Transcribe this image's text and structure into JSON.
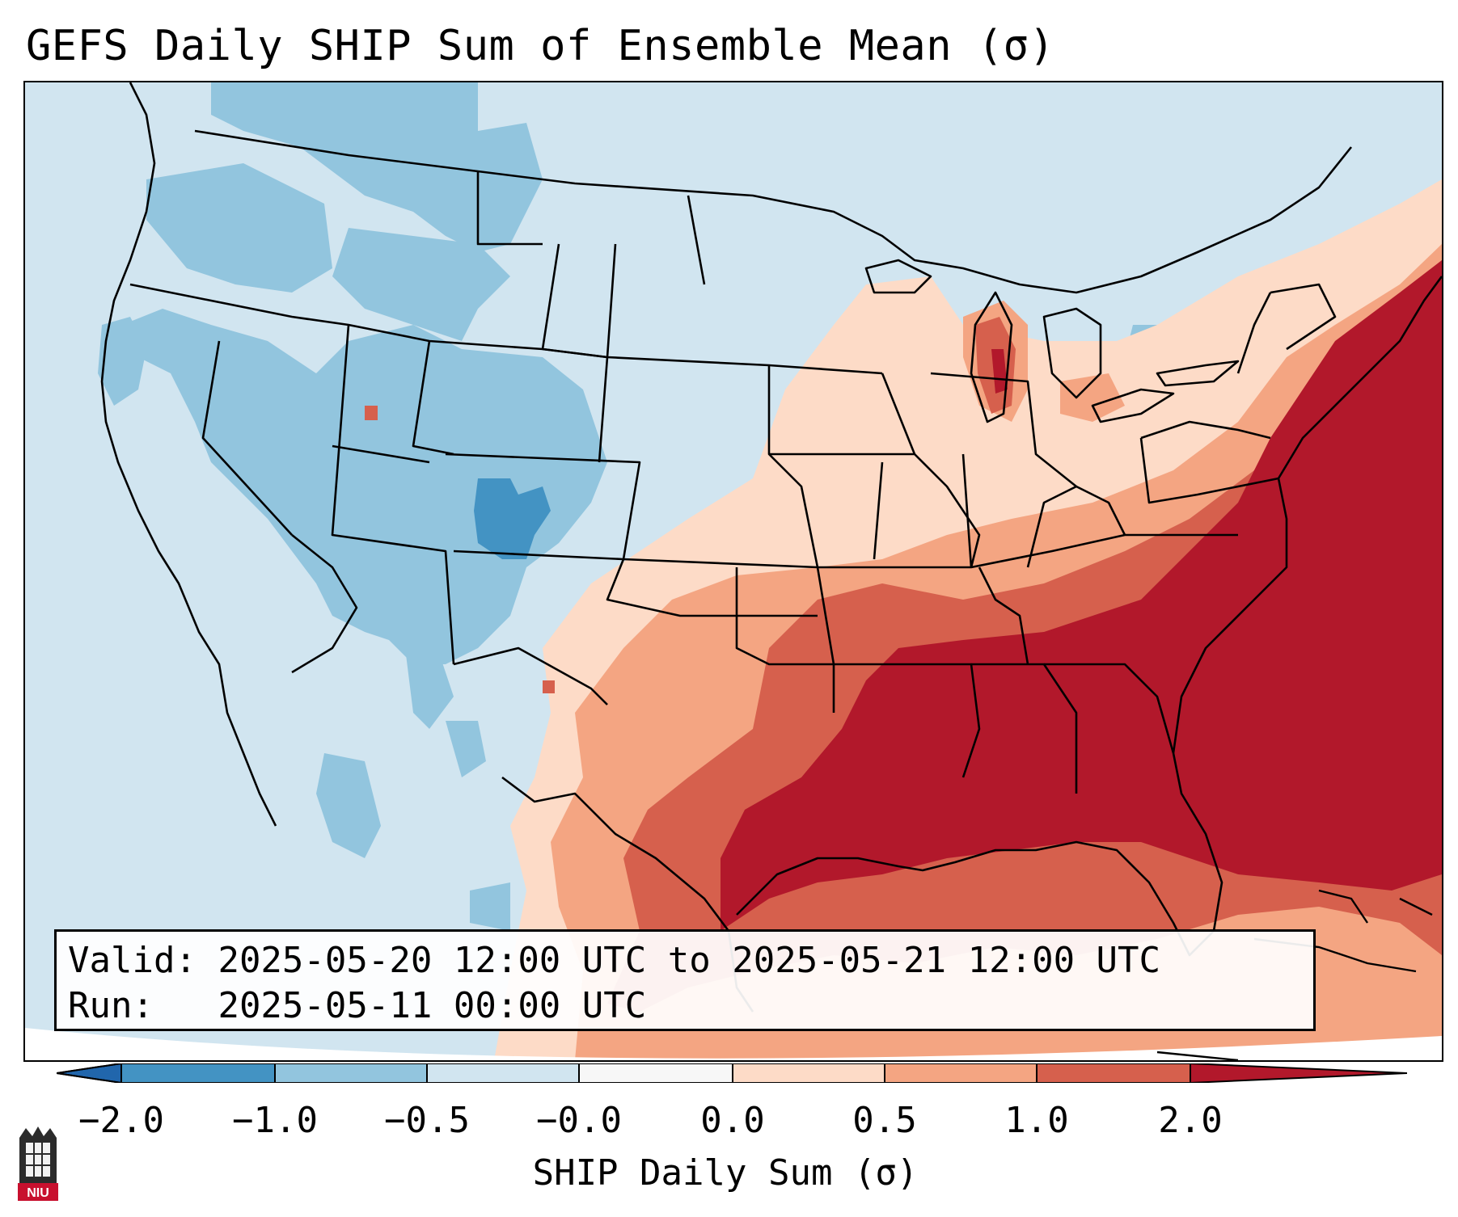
{
  "title": "GEFS Daily SHIP Sum of Ensemble Mean (σ)",
  "info": {
    "valid_label": "Valid:",
    "valid_value": "2025-05-20 12:00 UTC to 2025-05-21 12:00 UTC",
    "run_label": "Run:",
    "run_value": "2025-05-11 00:00 UTC"
  },
  "colorbar": {
    "label": "SHIP Daily Sum (σ)",
    "ticks": [
      "−2.0",
      "−1.0",
      "−0.5",
      "−0.0",
      "0.0",
      "0.5",
      "1.0",
      "2.0"
    ],
    "bin_colors": [
      "#4393c3",
      "#92c5de",
      "#d1e5f0",
      "#f7f7f7",
      "#fddbc7",
      "#f4a582",
      "#d6604d",
      "#b2182b"
    ],
    "under_color": "#2166ac",
    "over_color": "#b2182b"
  },
  "logo": {
    "text": "NIU",
    "icon": "university-tower-icon"
  }
}
